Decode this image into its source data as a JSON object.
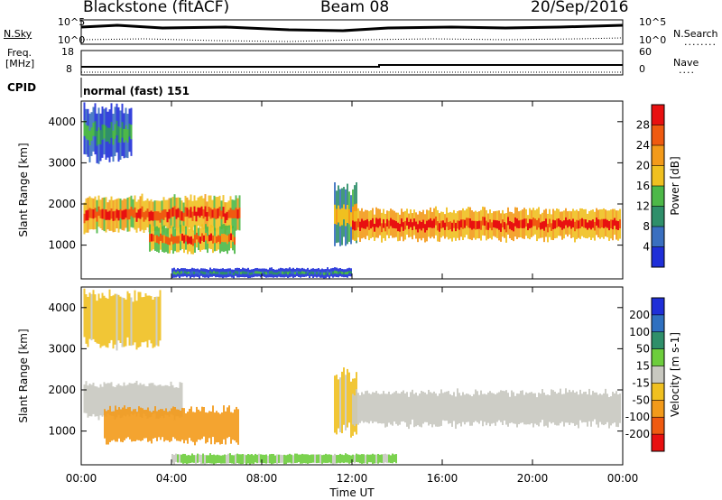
{
  "header": {
    "station": "Blackstone (fitACF)",
    "beam": "Beam 08",
    "date": "20/Sep/2016"
  },
  "top_panels": {
    "nsky_label": "N.Sky",
    "nsearch_label": "N.Search",
    "freq_label_line1": "Freq.",
    "freq_label_line2": "[MHz]",
    "nave_label": "Nave",
    "cpid_label": "CPID",
    "cpid_value": "normal (fast) 151",
    "noise_left_ticks": [
      "10^5",
      "10^0"
    ],
    "noise_right_ticks": [
      "10^5",
      "10^0"
    ],
    "freq_ticks": [
      "18",
      "8"
    ],
    "nave_ticks": [
      "60",
      "0"
    ]
  },
  "chart_data": [
    {
      "type": "heatmap",
      "name": "Power",
      "xlabel": "Time UT",
      "ylabel": "Slant Range [km]",
      "xlim": [
        "00:00",
        "24:00"
      ],
      "ylim": [
        180,
        4500
      ],
      "x_ticks": [
        "00:00",
        "04:00",
        "08:00",
        "12:00",
        "16:00",
        "20:00",
        "00:00"
      ],
      "y_ticks": [
        1000,
        2000,
        3000,
        4000
      ],
      "colorbar": {
        "label": "Power [dB]",
        "ticks": [
          "4",
          "8",
          "12",
          "16",
          "20",
          "24",
          "28"
        ],
        "colors": [
          "#1f2fd8",
          "#3a6fc0",
          "#2f8f6a",
          "#4db848",
          "#f0c020",
          "#f39a1a",
          "#ef5a10",
          "#e81010"
        ],
        "range": [
          0,
          32
        ]
      },
      "echo_regions": [
        {
          "t_start": 0.1,
          "t_end": 7.0,
          "range_start": 1300,
          "range_end": 2200,
          "level": 24
        },
        {
          "t_start": 3.0,
          "t_end": 6.8,
          "range_start": 800,
          "range_end": 1500,
          "level": 22
        },
        {
          "t_start": 0.1,
          "t_end": 2.2,
          "range_start": 3000,
          "range_end": 4400,
          "level": 8
        },
        {
          "t_start": 11.2,
          "t_end": 12.2,
          "range_start": 900,
          "range_end": 2500,
          "level": 16
        },
        {
          "t_start": 12.0,
          "t_end": 23.9,
          "range_start": 1100,
          "range_end": 1900,
          "level": 26
        },
        {
          "t_start": 4.0,
          "t_end": 12.0,
          "range_start": 200,
          "range_end": 450,
          "level": 6
        }
      ]
    },
    {
      "type": "heatmap",
      "name": "Velocity",
      "xlabel": "Time UT",
      "ylabel": "Slant Range [km]",
      "xlim": [
        "00:00",
        "24:00"
      ],
      "ylim": [
        180,
        4500
      ],
      "x_ticks": [
        "00:00",
        "04:00",
        "08:00",
        "12:00",
        "16:00",
        "20:00",
        "00:00"
      ],
      "y_ticks": [
        1000,
        2000,
        3000,
        4000
      ],
      "colorbar": {
        "label": "Velocity [m s-1]",
        "ticks": [
          "200",
          "100",
          "50",
          "15",
          "-15",
          "-50",
          "-100",
          "-200"
        ],
        "colors": [
          "#1f2fd8",
          "#2f70c0",
          "#2f8f6a",
          "#6dcd3c",
          "#c8c8c0",
          "#f0c020",
          "#f39a1a",
          "#ef5a10",
          "#e81010"
        ],
        "range": [
          -250,
          250
        ]
      },
      "echo_regions": [
        {
          "t_start": 0.1,
          "t_end": 4.5,
          "range_start": 1300,
          "range_end": 2200,
          "level": 0
        },
        {
          "t_start": 1.0,
          "t_end": 7.0,
          "range_start": 700,
          "range_end": 1600,
          "level": -110
        },
        {
          "t_start": 0.1,
          "t_end": 3.5,
          "range_start": 3000,
          "range_end": 4400,
          "level": -40
        },
        {
          "t_start": 11.2,
          "t_end": 12.2,
          "range_start": 900,
          "range_end": 2500,
          "level": -40
        },
        {
          "t_start": 12.0,
          "t_end": 23.9,
          "range_start": 1100,
          "range_end": 2000,
          "level": 0
        },
        {
          "t_start": 4.0,
          "t_end": 14.0,
          "range_start": 200,
          "range_end": 450,
          "level": 40
        }
      ]
    }
  ]
}
